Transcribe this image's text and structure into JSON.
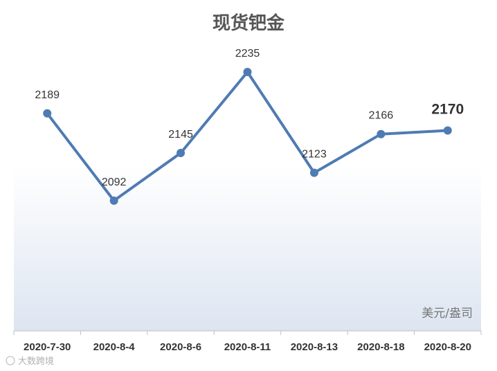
{
  "chart_data": {
    "type": "line",
    "title": "现货钯金",
    "unit_label": "美元/盎司",
    "categories": [
      "2020-7-30",
      "2020-8-4",
      "2020-8-6",
      "2020-8-11",
      "2020-8-13",
      "2020-8-18",
      "2020-8-20"
    ],
    "series": [
      {
        "values": [
          2189,
          2092,
          2145,
          2235,
          2123,
          2166,
          2170
        ]
      }
    ],
    "data_labels": [
      "2189",
      "2092",
      "2145",
      "2235",
      "2123",
      "2166",
      "2170"
    ],
    "highlight_last_label": true,
    "ylim": [
      1990,
      2250
    ],
    "grid": false,
    "legend": "none",
    "colors": {
      "line": "#4f7bb3",
      "gradient_top": "#ffffff",
      "gradient_bottom": "#dde5f1",
      "axis": "#bfbfbf"
    }
  },
  "watermark": "大数跨境"
}
